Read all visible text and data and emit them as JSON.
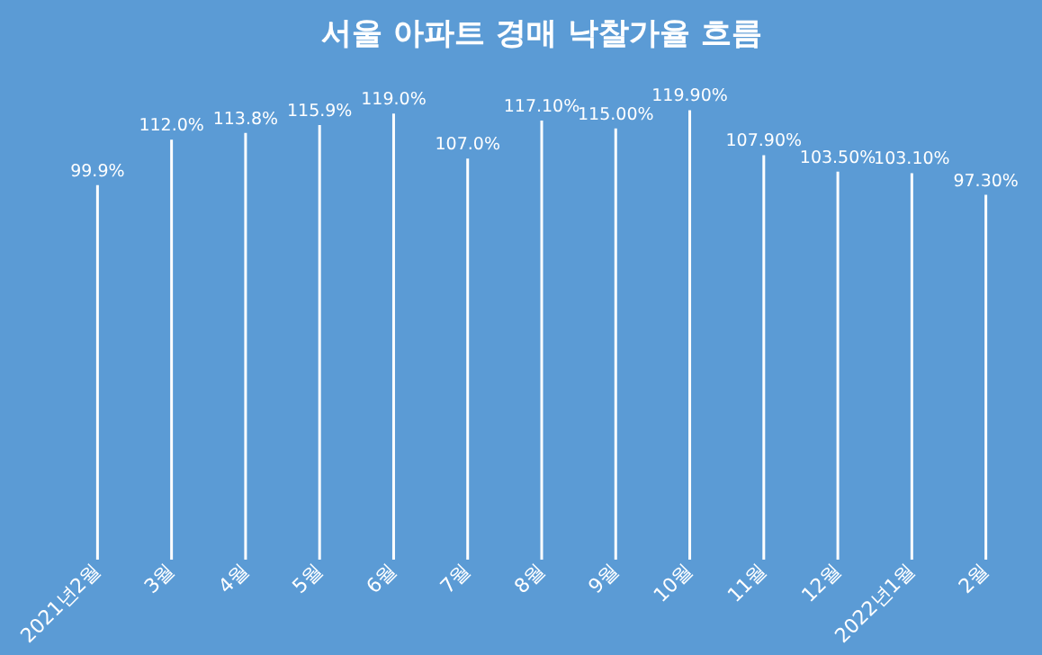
{
  "chart_data": {
    "type": "bar",
    "title": "서울 아파트 경매 낙찰가율 흐름",
    "categories": [
      "2021년2월",
      "3월",
      "4월",
      "5월",
      "6월",
      "7월",
      "8월",
      "9월",
      "10월",
      "11월",
      "12월",
      "2022년1월",
      "2월"
    ],
    "values": [
      99.9,
      112.0,
      113.8,
      115.9,
      119.0,
      107.0,
      117.1,
      115.0,
      119.9,
      107.9,
      103.5,
      103.1,
      97.3
    ],
    "value_labels": [
      "99.9%",
      "112.0%",
      "113.8%",
      "115.9%",
      "119.0%",
      "107.0%",
      "117.10%",
      "115.00%",
      "119.90%",
      "107.90%",
      "103.50%",
      "103.10%",
      "97.30%"
    ],
    "color": "#ffffff",
    "grid": false,
    "tick_labels": "x"
  }
}
